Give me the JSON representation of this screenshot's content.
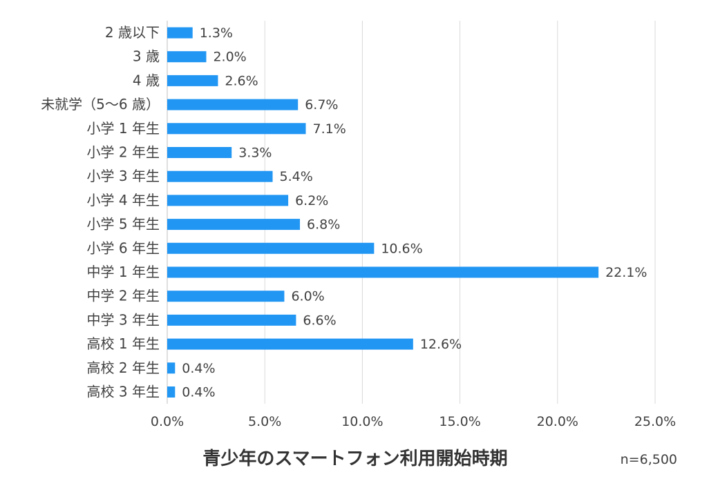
{
  "chart_data": {
    "type": "bar",
    "orientation": "horizontal",
    "title": "青少年のスマートフォン利用開始時期",
    "note": "n=6,500",
    "categories": [
      "2 歳以下",
      "3 歳",
      "4 歳",
      "未就学（5〜6 歳）",
      "小学 1 年生",
      "小学 2 年生",
      "小学 3 年生",
      "小学 4 年生",
      "小学 5 年生",
      "小学 6 年生",
      "中学 1 年生",
      "中学 2 年生",
      "中学 3 年生",
      "高校 1 年生",
      "高校 2 年生",
      "高校 3 年生"
    ],
    "values": [
      1.3,
      2.0,
      2.6,
      6.7,
      7.1,
      3.3,
      5.4,
      6.2,
      6.8,
      10.6,
      22.1,
      6.0,
      6.6,
      12.6,
      0.4,
      0.4
    ],
    "value_labels": [
      "1.3%",
      "2.0%",
      "2.6%",
      "6.7%",
      "7.1%",
      "3.3%",
      "5.4%",
      "6.2%",
      "6.8%",
      "10.6%",
      "22.1%",
      "6.0%",
      "6.6%",
      "12.6%",
      "0.4%",
      "0.4%"
    ],
    "xlim": [
      0,
      25
    ],
    "x_ticks": [
      0,
      5,
      10,
      15,
      20,
      25
    ],
    "x_tick_labels": [
      "0.0%",
      "5.0%",
      "10.0%",
      "15.0%",
      "20.0%",
      "25.0%"
    ],
    "grid": true,
    "bar_color": "#2196f3"
  }
}
